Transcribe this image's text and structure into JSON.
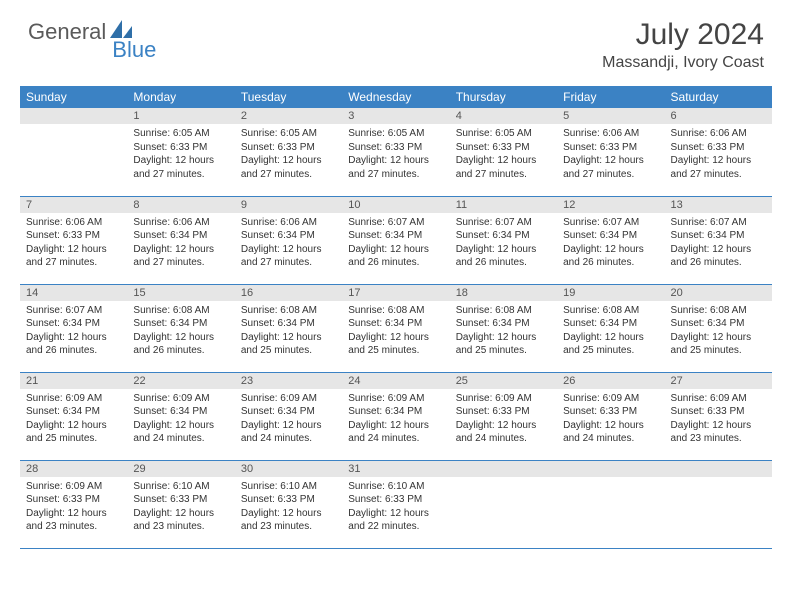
{
  "brand": {
    "part1": "General",
    "part2": "Blue"
  },
  "title": "July 2024",
  "location": "Massandji, Ivory Coast",
  "colors": {
    "header_bg": "#3b82c4",
    "header_text": "#ffffff",
    "daynum_bg": "#e6e6e6",
    "rule": "#3b82c4",
    "brand_gray": "#5a5a5a",
    "brand_blue": "#3b82c4"
  },
  "weekdays": [
    "Sunday",
    "Monday",
    "Tuesday",
    "Wednesday",
    "Thursday",
    "Friday",
    "Saturday"
  ],
  "leading_blanks": 1,
  "days": [
    {
      "n": "1",
      "sunrise": "6:05 AM",
      "sunset": "6:33 PM",
      "daylight": "12 hours and 27 minutes."
    },
    {
      "n": "2",
      "sunrise": "6:05 AM",
      "sunset": "6:33 PM",
      "daylight": "12 hours and 27 minutes."
    },
    {
      "n": "3",
      "sunrise": "6:05 AM",
      "sunset": "6:33 PM",
      "daylight": "12 hours and 27 minutes."
    },
    {
      "n": "4",
      "sunrise": "6:05 AM",
      "sunset": "6:33 PM",
      "daylight": "12 hours and 27 minutes."
    },
    {
      "n": "5",
      "sunrise": "6:06 AM",
      "sunset": "6:33 PM",
      "daylight": "12 hours and 27 minutes."
    },
    {
      "n": "6",
      "sunrise": "6:06 AM",
      "sunset": "6:33 PM",
      "daylight": "12 hours and 27 minutes."
    },
    {
      "n": "7",
      "sunrise": "6:06 AM",
      "sunset": "6:33 PM",
      "daylight": "12 hours and 27 minutes."
    },
    {
      "n": "8",
      "sunrise": "6:06 AM",
      "sunset": "6:34 PM",
      "daylight": "12 hours and 27 minutes."
    },
    {
      "n": "9",
      "sunrise": "6:06 AM",
      "sunset": "6:34 PM",
      "daylight": "12 hours and 27 minutes."
    },
    {
      "n": "10",
      "sunrise": "6:07 AM",
      "sunset": "6:34 PM",
      "daylight": "12 hours and 26 minutes."
    },
    {
      "n": "11",
      "sunrise": "6:07 AM",
      "sunset": "6:34 PM",
      "daylight": "12 hours and 26 minutes."
    },
    {
      "n": "12",
      "sunrise": "6:07 AM",
      "sunset": "6:34 PM",
      "daylight": "12 hours and 26 minutes."
    },
    {
      "n": "13",
      "sunrise": "6:07 AM",
      "sunset": "6:34 PM",
      "daylight": "12 hours and 26 minutes."
    },
    {
      "n": "14",
      "sunrise": "6:07 AM",
      "sunset": "6:34 PM",
      "daylight": "12 hours and 26 minutes."
    },
    {
      "n": "15",
      "sunrise": "6:08 AM",
      "sunset": "6:34 PM",
      "daylight": "12 hours and 26 minutes."
    },
    {
      "n": "16",
      "sunrise": "6:08 AM",
      "sunset": "6:34 PM",
      "daylight": "12 hours and 25 minutes."
    },
    {
      "n": "17",
      "sunrise": "6:08 AM",
      "sunset": "6:34 PM",
      "daylight": "12 hours and 25 minutes."
    },
    {
      "n": "18",
      "sunrise": "6:08 AM",
      "sunset": "6:34 PM",
      "daylight": "12 hours and 25 minutes."
    },
    {
      "n": "19",
      "sunrise": "6:08 AM",
      "sunset": "6:34 PM",
      "daylight": "12 hours and 25 minutes."
    },
    {
      "n": "20",
      "sunrise": "6:08 AM",
      "sunset": "6:34 PM",
      "daylight": "12 hours and 25 minutes."
    },
    {
      "n": "21",
      "sunrise": "6:09 AM",
      "sunset": "6:34 PM",
      "daylight": "12 hours and 25 minutes."
    },
    {
      "n": "22",
      "sunrise": "6:09 AM",
      "sunset": "6:34 PM",
      "daylight": "12 hours and 24 minutes."
    },
    {
      "n": "23",
      "sunrise": "6:09 AM",
      "sunset": "6:34 PM",
      "daylight": "12 hours and 24 minutes."
    },
    {
      "n": "24",
      "sunrise": "6:09 AM",
      "sunset": "6:34 PM",
      "daylight": "12 hours and 24 minutes."
    },
    {
      "n": "25",
      "sunrise": "6:09 AM",
      "sunset": "6:33 PM",
      "daylight": "12 hours and 24 minutes."
    },
    {
      "n": "26",
      "sunrise": "6:09 AM",
      "sunset": "6:33 PM",
      "daylight": "12 hours and 24 minutes."
    },
    {
      "n": "27",
      "sunrise": "6:09 AM",
      "sunset": "6:33 PM",
      "daylight": "12 hours and 23 minutes."
    },
    {
      "n": "28",
      "sunrise": "6:09 AM",
      "sunset": "6:33 PM",
      "daylight": "12 hours and 23 minutes."
    },
    {
      "n": "29",
      "sunrise": "6:10 AM",
      "sunset": "6:33 PM",
      "daylight": "12 hours and 23 minutes."
    },
    {
      "n": "30",
      "sunrise": "6:10 AM",
      "sunset": "6:33 PM",
      "daylight": "12 hours and 23 minutes."
    },
    {
      "n": "31",
      "sunrise": "6:10 AM",
      "sunset": "6:33 PM",
      "daylight": "12 hours and 22 minutes."
    }
  ],
  "labels": {
    "sunrise": "Sunrise:",
    "sunset": "Sunset:",
    "daylight": "Daylight:"
  }
}
